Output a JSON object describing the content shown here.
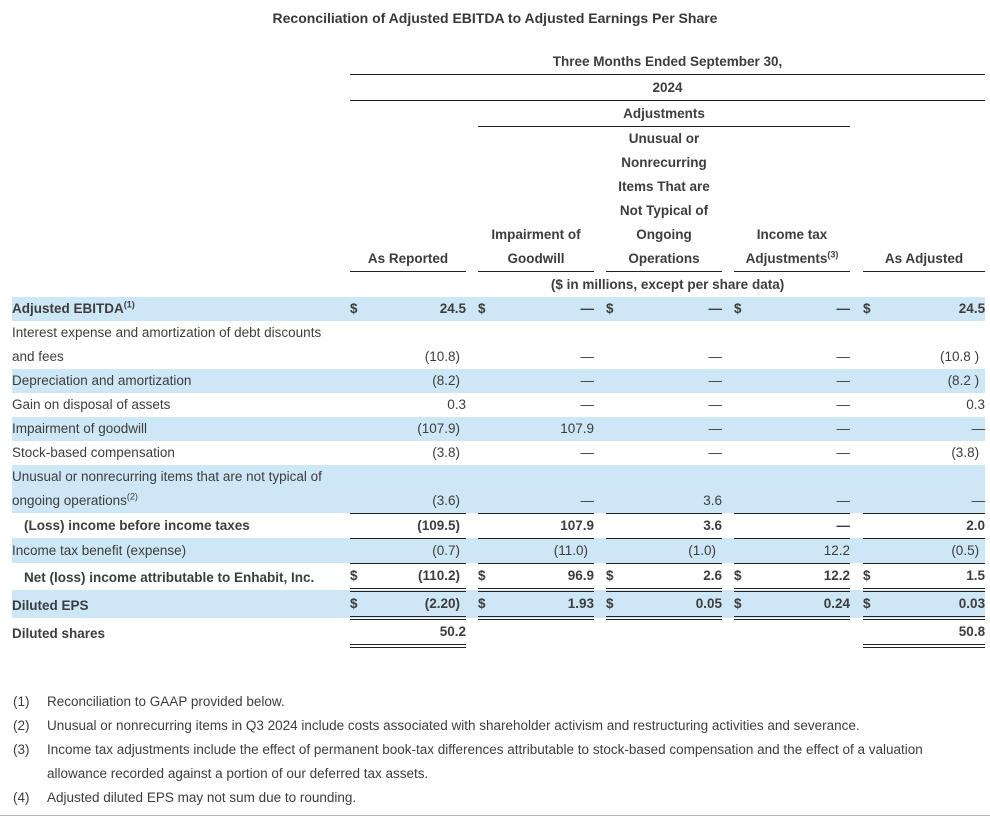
{
  "title": "Reconciliation of Adjusted EBITDA to Adjusted Earnings Per Share",
  "table": {
    "period_header": "Three Months Ended September 30,",
    "year_header": "2024",
    "adjustments_header": "Adjustments",
    "units_note": "($ in millions, except per share data)",
    "currency_symbol": "$",
    "columns": [
      {
        "label_lines": [
          "As Reported"
        ],
        "sup": ""
      },
      {
        "label_lines": [
          "Impairment of",
          "Goodwill"
        ],
        "sup": ""
      },
      {
        "label_lines": [
          "Unusual or",
          "Nonrecurring",
          "Items That are",
          "Not Typical of",
          "Ongoing",
          "Operations"
        ],
        "sup": ""
      },
      {
        "label_lines": [
          "Income tax",
          "Adjustments"
        ],
        "sup": "(3)"
      },
      {
        "label_lines": [
          "As Adjusted"
        ],
        "sup": ""
      }
    ],
    "rows": [
      {
        "label_lines": [
          "Adjusted EBITDA"
        ],
        "sup": "(1)",
        "bold": true,
        "shaded": true,
        "indent": false,
        "dollar": true,
        "values": [
          "24.5",
          "—",
          "—",
          "—",
          "24.5"
        ],
        "border": "none"
      },
      {
        "label_lines": [
          "Interest expense and amortization of debt discounts",
          "and fees"
        ],
        "sup": "",
        "bold": false,
        "shaded": false,
        "indent": false,
        "dollar": false,
        "values": [
          "(10.8)",
          "—",
          "—",
          "—",
          "(10.8 )"
        ],
        "border": "none"
      },
      {
        "label_lines": [
          "Depreciation and amortization"
        ],
        "sup": "",
        "bold": false,
        "shaded": true,
        "indent": false,
        "dollar": false,
        "values": [
          "(8.2)",
          "—",
          "—",
          "—",
          "(8.2 )"
        ],
        "border": "none"
      },
      {
        "label_lines": [
          "Gain on disposal of assets"
        ],
        "sup": "",
        "bold": false,
        "shaded": false,
        "indent": false,
        "dollar": false,
        "values": [
          "0.3",
          "—",
          "—",
          "—",
          "0.3"
        ],
        "border": "none"
      },
      {
        "label_lines": [
          "Impairment of goodwill"
        ],
        "sup": "",
        "bold": false,
        "shaded": true,
        "indent": false,
        "dollar": false,
        "values": [
          "(107.9)",
          "107.9",
          "—",
          "—",
          "—"
        ],
        "border": "none"
      },
      {
        "label_lines": [
          "Stock-based compensation"
        ],
        "sup": "",
        "bold": false,
        "shaded": false,
        "indent": false,
        "dollar": false,
        "values": [
          "(3.8)",
          "—",
          "—",
          "—",
          "(3.8)"
        ],
        "border": "none"
      },
      {
        "label_lines": [
          "Unusual or nonrecurring items that are not typical of",
          "ongoing operations"
        ],
        "sup": "(2)",
        "bold": false,
        "shaded": true,
        "indent": false,
        "dollar": false,
        "values": [
          "(3.6)",
          "—",
          "3.6",
          "—",
          "—"
        ],
        "border": "single"
      },
      {
        "label_lines": [
          "(Loss) income before income taxes"
        ],
        "sup": "",
        "bold": true,
        "shaded": false,
        "indent": true,
        "dollar": false,
        "values": [
          "(109.5)",
          "107.9",
          "3.6",
          "—",
          "2.0"
        ],
        "border": "single"
      },
      {
        "label_lines": [
          "Income tax benefit (expense)"
        ],
        "sup": "",
        "bold": false,
        "shaded": true,
        "indent": false,
        "dollar": false,
        "values": [
          "(0.7)",
          "(11.0)",
          "(1.0)",
          "12.2",
          "(0.5)"
        ],
        "border": "single"
      },
      {
        "label_lines": [
          "Net (loss) income attributable to Enhabit, Inc."
        ],
        "sup": "",
        "bold": true,
        "shaded": false,
        "indent": true,
        "dollar": true,
        "values": [
          "(110.2)",
          "96.9",
          "2.6",
          "12.2",
          "1.5"
        ],
        "border": "double"
      },
      {
        "label_lines": [
          "Diluted EPS"
        ],
        "sup": "",
        "bold": true,
        "shaded": true,
        "indent": false,
        "dollar": true,
        "values": [
          "(2.20)",
          "1.93",
          "0.05",
          "0.24",
          "0.03"
        ],
        "border": "double"
      },
      {
        "label_lines": [
          "Diluted shares"
        ],
        "sup": "",
        "bold": true,
        "shaded": false,
        "indent": false,
        "dollar": false,
        "values": [
          "50.2",
          "",
          "",
          "",
          "50.8"
        ],
        "border": "double",
        "border_cols": [
          0,
          4
        ]
      }
    ]
  },
  "footnotes": [
    {
      "num": "(1)",
      "text": "Reconciliation to GAAP provided below."
    },
    {
      "num": "(2)",
      "text": "Unusual or nonrecurring items in Q3 2024 include costs associated with shareholder activism and restructuring activities and severance."
    },
    {
      "num": "(3)",
      "text": "Income tax adjustments include the effect of permanent book-tax differences attributable to stock-based compensation and the effect of a valuation allowance recorded against a portion of our deferred tax assets."
    },
    {
      "num": "(4)",
      "text": "Adjusted diluted EPS may not sum due to rounding."
    }
  ]
}
